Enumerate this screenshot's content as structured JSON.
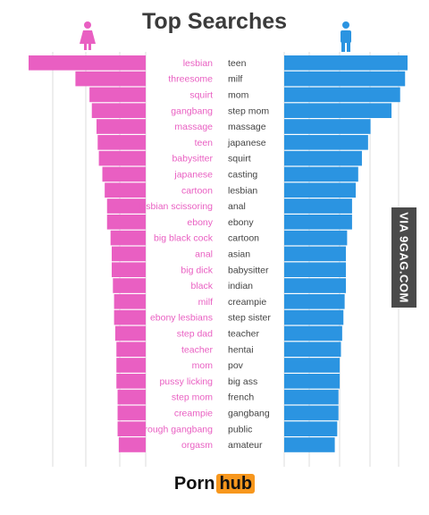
{
  "chart_data": {
    "type": "bar",
    "title": "Top Searches",
    "orientation": "horizontal-mirrored",
    "series": [
      {
        "name": "female",
        "color": "#e95fc2",
        "icon": "female-icon",
        "labels": [
          "lesbian",
          "threesome",
          "squirt",
          "gangbang",
          "massage",
          "teen",
          "babysitter",
          "japanese",
          "cartoon",
          "lesbian scissoring",
          "ebony",
          "big black cock",
          "anal",
          "big dick",
          "black",
          "milf",
          "ebony lesbians",
          "step dad",
          "teacher",
          "mom",
          "pussy licking",
          "step mom",
          "creampie",
          "rough gangbang",
          "orgasm"
        ],
        "values": [
          100,
          60,
          48,
          46,
          42,
          41,
          40,
          37,
          35,
          33,
          33,
          30,
          29,
          29,
          28,
          27,
          27,
          26,
          25,
          25,
          25,
          24,
          24,
          24,
          23
        ]
      },
      {
        "name": "male",
        "color": "#2b94e1",
        "icon": "male-icon",
        "labels": [
          "teen",
          "milf",
          "mom",
          "step mom",
          "massage",
          "japanese",
          "squirt",
          "casting",
          "lesbian",
          "anal",
          "ebony",
          "cartoon",
          "asian",
          "babysitter",
          "indian",
          "creampie",
          "step sister",
          "teacher",
          "hentai",
          "pov",
          "big ass",
          "french",
          "gangbang",
          "public",
          "amateur"
        ],
        "values": [
          100,
          98,
          94,
          87,
          70,
          68,
          63,
          60,
          58,
          55,
          55,
          51,
          50,
          50,
          50,
          49,
          48,
          47,
          46,
          45,
          45,
          44,
          44,
          43,
          41
        ]
      }
    ],
    "xlim": [
      0,
      100
    ],
    "grid": true
  },
  "watermark": "VIA 9GAG.COM",
  "logo": {
    "left": "Porn",
    "right": "hub"
  }
}
